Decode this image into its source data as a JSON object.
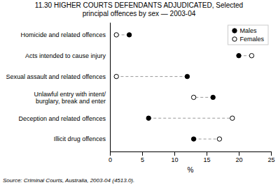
{
  "chart_data": {
    "type": "dumbbell",
    "title": "11.30   HIGHER COURTS DEFENDANTS ADJUDICATED, Selected",
    "subtitle": "principal offences by sex — 2003-04",
    "categories": [
      "Homicide and related offences",
      "Acts intended to cause injury",
      "Sexual assault and related offences",
      "Unlawful entry with intent/\nburglary, break and enter",
      "Deception and related offences",
      "Illicit drug offences"
    ],
    "series": [
      {
        "name": "Males",
        "color": "black",
        "marker": "filled-circle",
        "values": [
          3,
          20,
          12,
          16,
          6,
          13
        ]
      },
      {
        "name": "Females",
        "color": "black",
        "marker": "open-circle",
        "values": [
          1,
          22,
          1,
          13,
          19,
          17
        ]
      }
    ],
    "line_style": "dashed",
    "color": "#999999",
    "xlim": [
      0,
      25
    ],
    "xticks": [
      0,
      5,
      10,
      15,
      20,
      25
    ],
    "xlabel": "%",
    "source": "Source: Criminal Courts, Australia, 2003-04 (4513.0).",
    "legend": "upper right",
    "grid": false
  }
}
